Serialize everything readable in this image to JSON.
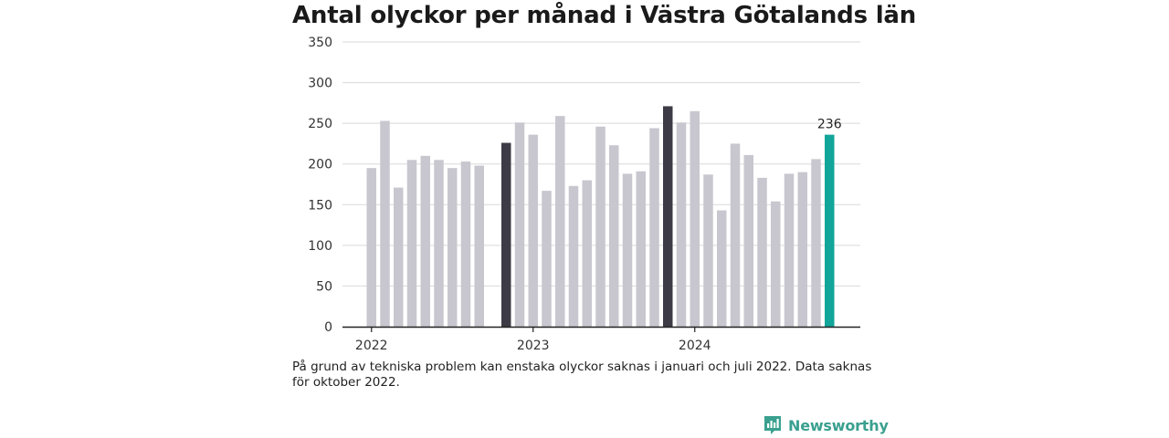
{
  "title": "Antal olyckor per månad i Västra Götalands län",
  "note": "På grund av tekniska problem kan enstaka olyckor saknas i januari och juli 2022. Data saknas för oktober 2022.",
  "brand": {
    "name": "Newsworthy",
    "icon": "newsworthy-logo-icon",
    "color": "#3aa08f"
  },
  "colors": {
    "default": "#c8c7cf",
    "highlight_dark": "#3d3c46",
    "highlight_latest": "#12a59a"
  },
  "chart_data": {
    "type": "bar",
    "title": "Antal olyckor per månad i Västra Götalands län",
    "xlabel": "",
    "ylabel": "",
    "ylim": [
      0,
      350
    ],
    "yticks": [
      0,
      50,
      100,
      150,
      200,
      250,
      300,
      350
    ],
    "xticks": [
      "2022",
      "2023",
      "2024"
    ],
    "grid": true,
    "categories": [
      "2022-01",
      "2022-02",
      "2022-03",
      "2022-04",
      "2022-05",
      "2022-06",
      "2022-07",
      "2022-08",
      "2022-09",
      "2022-10",
      "2022-11",
      "2022-12",
      "2023-01",
      "2023-02",
      "2023-03",
      "2023-04",
      "2023-05",
      "2023-06",
      "2023-07",
      "2023-08",
      "2023-09",
      "2023-10",
      "2023-11",
      "2023-12",
      "2024-01",
      "2024-02",
      "2024-03",
      "2024-04",
      "2024-05",
      "2024-06",
      "2024-07",
      "2024-08",
      "2024-09",
      "2024-10",
      "2024-11"
    ],
    "values": [
      195,
      253,
      171,
      205,
      210,
      205,
      195,
      203,
      198,
      null,
      226,
      251,
      236,
      167,
      259,
      173,
      180,
      246,
      223,
      188,
      191,
      244,
      271,
      251,
      265,
      187,
      143,
      225,
      211,
      183,
      154,
      188,
      190,
      206,
      236
    ],
    "highlight": {
      "2022-11": "dark",
      "2023-11": "dark",
      "2024-11": "latest"
    },
    "annotations": [
      {
        "category": "2024-11",
        "text": "236"
      }
    ]
  }
}
